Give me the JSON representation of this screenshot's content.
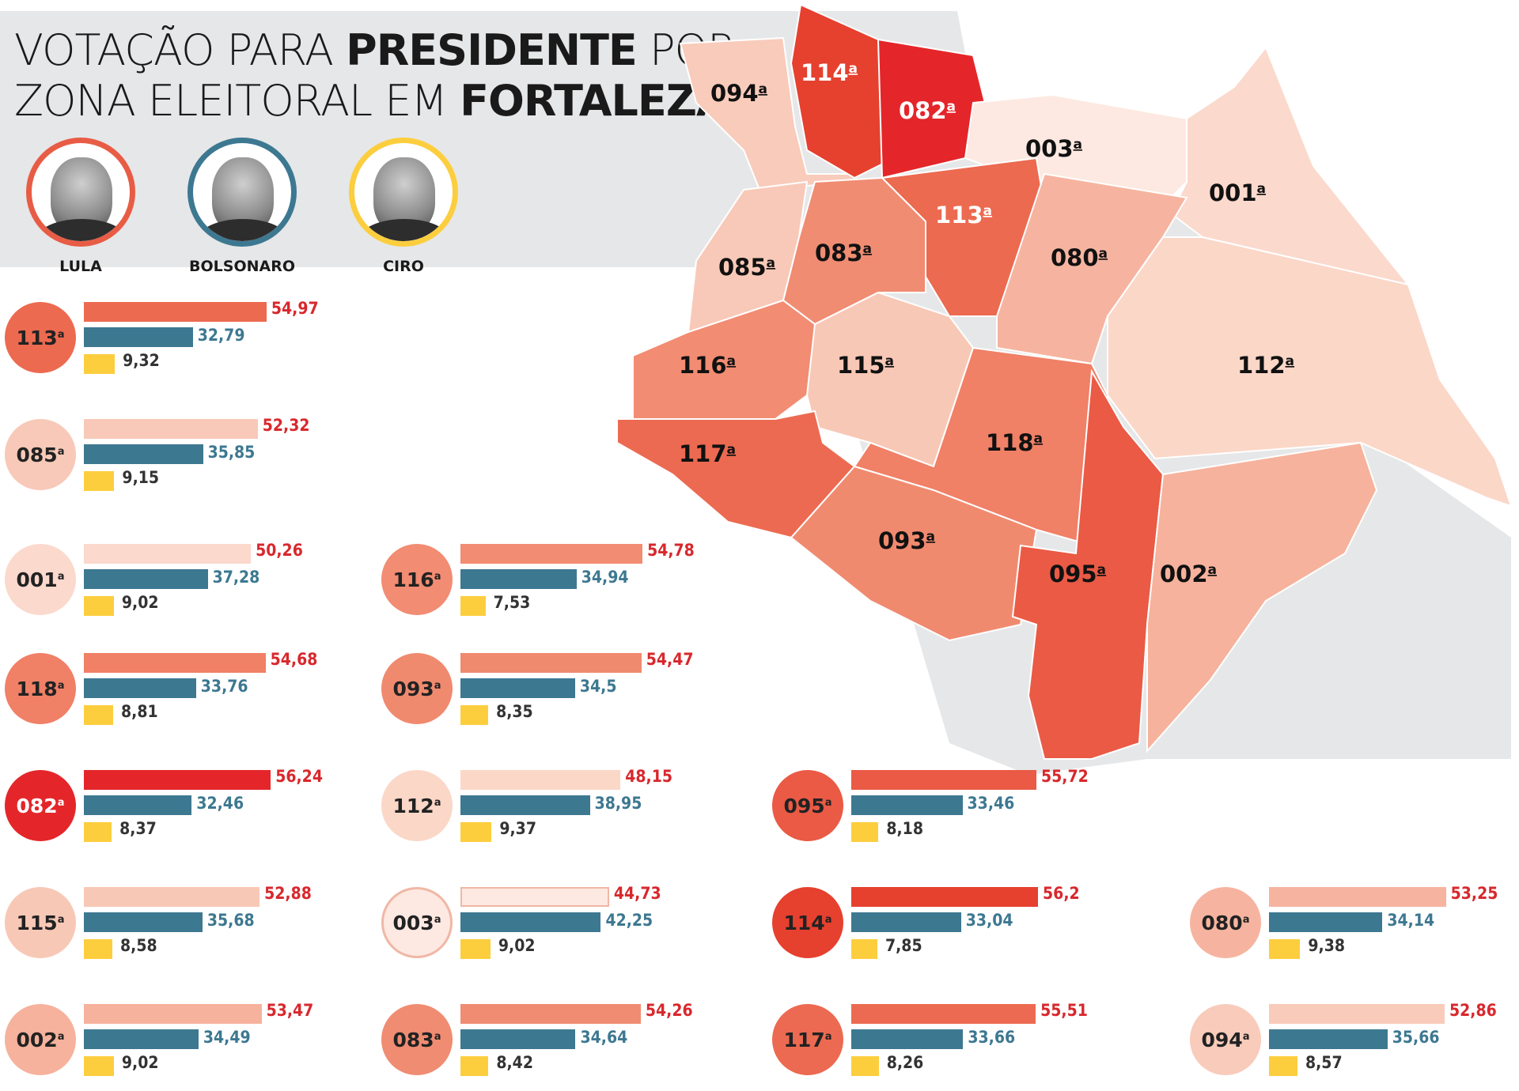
{
  "title": {
    "line1_normal": "VOTAÇÃO PARA ",
    "line1_bold": "PRESIDENTE",
    "line1_tail": " POR",
    "line2_normal": "ZONA ELEITORAL EM ",
    "line2_bold": "FORTALEZA"
  },
  "candidates": [
    {
      "name": "LULA",
      "color": "#e85c45"
    },
    {
      "name": "BOLSONARO",
      "color": "#3d7891"
    },
    {
      "name": "CIRO",
      "color": "#fcce3e"
    }
  ],
  "colors": {
    "lula": "#d8282d",
    "bolsonaro": "#3d7891",
    "ciro": "#fcce3e",
    "header_bg": "#e6e7e8"
  },
  "map_labels": [
    {
      "zone": "094",
      "sup": "a"
    },
    {
      "zone": "114",
      "sup": "a"
    },
    {
      "zone": "082",
      "sup": "a"
    },
    {
      "zone": "003",
      "sup": "a"
    },
    {
      "zone": "001",
      "sup": "a"
    },
    {
      "zone": "085",
      "sup": "a"
    },
    {
      "zone": "083",
      "sup": "a"
    },
    {
      "zone": "113",
      "sup": "a"
    },
    {
      "zone": "080",
      "sup": "a"
    },
    {
      "zone": "116",
      "sup": "a"
    },
    {
      "zone": "115",
      "sup": "a"
    },
    {
      "zone": "112",
      "sup": "a"
    },
    {
      "zone": "117",
      "sup": "a"
    },
    {
      "zone": "118",
      "sup": "a"
    },
    {
      "zone": "093",
      "sup": "a"
    },
    {
      "zone": "095",
      "sup": "a"
    },
    {
      "zone": "002",
      "sup": "a"
    }
  ],
  "chart_data": {
    "type": "bar",
    "title": "VOTAÇÃO PARA PRESIDENTE POR ZONA ELEITORAL EM FORTALEZA",
    "series_names": [
      "LULA",
      "BOLSONARO",
      "CIRO"
    ],
    "unit": "%",
    "zones": [
      {
        "zone": "113",
        "sup": "a",
        "lula": "54,97",
        "bolsonaro": "32,79",
        "ciro": "9,32",
        "fill": "#ec6a50"
      },
      {
        "zone": "085",
        "sup": "a",
        "lula": "52,32",
        "bolsonaro": "35,85",
        "ciro": "9,15",
        "fill": "#f8c9b8"
      },
      {
        "zone": "001",
        "sup": "a",
        "lula": "50,26",
        "bolsonaro": "37,28",
        "ciro": "9,02",
        "fill": "#fbd9cd"
      },
      {
        "zone": "116",
        "sup": "a",
        "lula": "54,78",
        "bolsonaro": "34,94",
        "ciro": "7,53",
        "fill": "#f28c72"
      },
      {
        "zone": "118",
        "sup": "a",
        "lula": "54,68",
        "bolsonaro": "33,76",
        "ciro": "8,81",
        "fill": "#f08066"
      },
      {
        "zone": "093",
        "sup": "a",
        "lula": "54,47",
        "bolsonaro": "34,5",
        "ciro": "8,35",
        "fill": "#f08a6f"
      },
      {
        "zone": "082",
        "sup": "a",
        "lula": "56,24",
        "bolsonaro": "32,46",
        "ciro": "8,37",
        "fill": "#e4262a"
      },
      {
        "zone": "112",
        "sup": "a",
        "lula": "48,15",
        "bolsonaro": "38,95",
        "ciro": "9,37",
        "fill": "#fbd7c8"
      },
      {
        "zone": "095",
        "sup": "a",
        "lula": "55,72",
        "bolsonaro": "33,46",
        "ciro": "8,18",
        "fill": "#ea5a45"
      },
      {
        "zone": "115",
        "sup": "a",
        "lula": "52,88",
        "bolsonaro": "35,68",
        "ciro": "8,58",
        "fill": "#f8c8b6"
      },
      {
        "zone": "003",
        "sup": "a",
        "lula": "44,73",
        "bolsonaro": "42,25",
        "ciro": "9,02",
        "fill": "#fde9e1"
      },
      {
        "zone": "114",
        "sup": "a",
        "lula": "56,2",
        "bolsonaro": "33,04",
        "ciro": "7,85",
        "fill": "#e6402f"
      },
      {
        "zone": "080",
        "sup": "a",
        "lula": "53,25",
        "bolsonaro": "34,14",
        "ciro": "9,38",
        "fill": "#f6b4a0"
      },
      {
        "zone": "002",
        "sup": "a",
        "lula": "53,47",
        "bolsonaro": "34,49",
        "ciro": "9,02",
        "fill": "#f6b29c"
      },
      {
        "zone": "083",
        "sup": "a",
        "lula": "54,26",
        "bolsonaro": "34,64",
        "ciro": "8,42",
        "fill": "#f08c72"
      },
      {
        "zone": "117",
        "sup": "a",
        "lula": "55,51",
        "bolsonaro": "33,66",
        "ciro": "8,26",
        "fill": "#ec6a51"
      },
      {
        "zone": "094",
        "sup": "a",
        "lula": "52,86",
        "bolsonaro": "35,66",
        "ciro": "8,57",
        "fill": "#f9cbbb"
      }
    ]
  }
}
